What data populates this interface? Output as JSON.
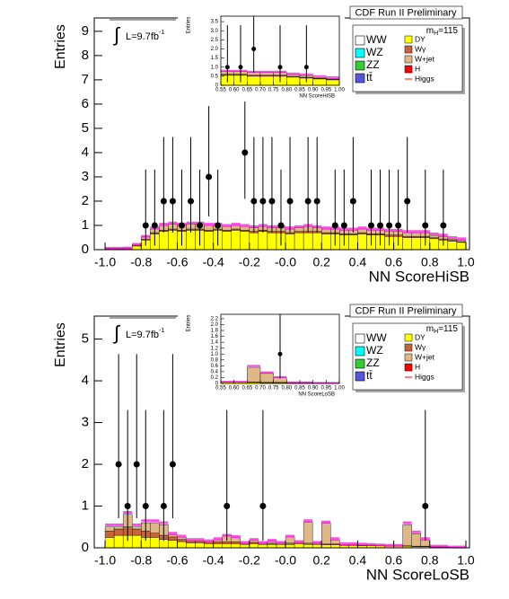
{
  "chart_data": [
    {
      "type": "histogram",
      "title": "CDF Run II Preliminary",
      "xlabel": "NN ScoreHiSB",
      "ylabel": "Entries",
      "mass_label": {
        "symbol": "m",
        "subscript": "H",
        "text": "=115"
      },
      "lumi_label": {
        "integral": "∫",
        "text": "L=9.7fb",
        "superscript": "-1"
      },
      "xlim": [
        -1.06,
        1.02
      ],
      "ylim": [
        0,
        9.55
      ],
      "xticks": [
        {
          "value": -1,
          "label": "-1.0"
        },
        -0.8,
        -0.6,
        -0.4,
        -0.2,
        {
          "value": 0,
          "label": "-0.0"
        },
        0.2,
        0.4,
        0.6,
        0.8,
        {
          "value": 1,
          "label": "1.0"
        }
      ],
      "yticks": [
        0,
        1,
        2,
        3,
        4,
        5,
        6,
        7,
        8,
        9
      ],
      "bins": [
        -1,
        -0.95,
        -0.9,
        -0.85,
        -0.8,
        -0.75,
        -0.7,
        -0.65,
        -0.6,
        -0.55,
        -0.5,
        -0.45,
        -0.4,
        -0.35,
        -0.3,
        -0.25,
        -0.2,
        -0.15,
        -0.1,
        -0.05,
        0,
        0.05,
        0.1,
        0.15,
        0.2,
        0.25,
        0.3,
        0.35,
        0.4,
        0.45,
        0.5,
        0.55,
        0.6,
        0.65,
        0.7,
        0.75,
        0.8,
        0.85,
        0.9,
        0.95,
        1
      ],
      "series": [
        {
          "name": "DY",
          "color": "#ffff00",
          "values": [
            0.03,
            0.03,
            0.03,
            0.15,
            0.4,
            0.65,
            0.75,
            0.8,
            0.75,
            0.8,
            0.8,
            0.75,
            0.8,
            0.75,
            0.8,
            0.75,
            0.7,
            0.75,
            0.7,
            0.7,
            0.65,
            0.7,
            0.7,
            0.7,
            0.65,
            0.65,
            0.6,
            0.6,
            0.65,
            0.6,
            0.6,
            0.55,
            0.55,
            0.5,
            0.5,
            0.5,
            0.45,
            0.4,
            0.35,
            0.3
          ]
        },
        {
          "name": "Wγ",
          "color": "#c8643c",
          "values": [
            0.01,
            0.01,
            0.01,
            0.02,
            0.03,
            0.05,
            0.05,
            0.05,
            0.05,
            0.05,
            0.05,
            0.05,
            0.05,
            0.05,
            0.05,
            0.05,
            0.05,
            0.05,
            0.05,
            0.05,
            0.05,
            0.05,
            0.05,
            0.05,
            0.05,
            0.05,
            0.05,
            0.05,
            0.05,
            0.05,
            0.05,
            0.05,
            0.05,
            0.05,
            0.05,
            0.05,
            0.04,
            0.04,
            0.03,
            0.03
          ]
        },
        {
          "name": "W+jet",
          "color": "#deb887",
          "values": [
            0.02,
            0.02,
            0.03,
            0.05,
            0.1,
            0.15,
            0.2,
            0.2,
            0.2,
            0.2,
            0.2,
            0.2,
            0.15,
            0.15,
            0.15,
            0.15,
            0.15,
            0.15,
            0.15,
            0.15,
            0.15,
            0.15,
            0.2,
            0.15,
            0.15,
            0.15,
            0.15,
            0.15,
            0.15,
            0.15,
            0.15,
            0.15,
            0.15,
            0.15,
            0.15,
            0.15,
            0.1,
            0.1,
            0.05,
            0.05
          ]
        }
      ],
      "higgs": {
        "name": "Higgs",
        "color": "#ff22dd",
        "values": [
          0.06,
          0.06,
          0.07,
          0.22,
          0.55,
          0.9,
          1.05,
          1.1,
          1.05,
          1.1,
          1.1,
          1.05,
          1.05,
          1.0,
          1.05,
          1.0,
          0.95,
          1.0,
          0.95,
          0.95,
          0.9,
          0.95,
          1.0,
          0.95,
          0.9,
          0.9,
          0.85,
          0.85,
          0.9,
          0.85,
          0.85,
          0.8,
          0.8,
          0.75,
          0.75,
          0.75,
          0.65,
          0.6,
          0.5,
          0.45
        ]
      },
      "legend_only": [
        {
          "name": "WW",
          "color": "#ffffff"
        },
        {
          "name": "WZ",
          "color": "#00ffff"
        },
        {
          "name": "ZZ",
          "color": "#33cc33"
        },
        {
          "name": "tt̄",
          "color": "#5555dd"
        },
        {
          "name": "H",
          "color": "#ff0000"
        }
      ],
      "legend_position": "upper right",
      "data_points": {
        "x": [
          -0.775,
          -0.725,
          -0.675,
          -0.625,
          -0.575,
          -0.525,
          -0.475,
          -0.425,
          -0.375,
          -0.225,
          -0.175,
          -0.125,
          -0.075,
          -0.025,
          0.025,
          0.125,
          0.175,
          0.275,
          0.325,
          0.375,
          0.475,
          0.525,
          0.575,
          0.625,
          0.675,
          0.775,
          0.875
        ],
        "values": [
          1,
          1,
          2,
          2,
          1,
          2,
          1,
          3,
          1,
          4,
          2,
          2,
          2,
          1,
          2,
          2,
          2,
          1,
          1,
          2,
          1,
          1,
          1,
          1,
          2,
          1,
          1
        ],
        "err_low": [
          0.83,
          0.83,
          1.29,
          1.29,
          0.83,
          1.29,
          0.83,
          1.63,
          0.83,
          1.91,
          1.29,
          1.29,
          1.29,
          0.83,
          1.29,
          1.29,
          1.29,
          0.83,
          0.83,
          1.29,
          0.83,
          0.83,
          0.83,
          0.83,
          1.29,
          0.83,
          0.83
        ],
        "err_high": [
          2.3,
          2.3,
          2.64,
          2.64,
          2.3,
          2.64,
          2.3,
          2.92,
          2.3,
          3.16,
          2.64,
          2.64,
          2.64,
          2.3,
          2.64,
          2.64,
          2.64,
          2.3,
          2.3,
          2.64,
          2.3,
          2.3,
          2.3,
          2.3,
          2.64,
          2.3,
          2.3
        ]
      },
      "inset": {
        "xlabel": "NN ScoreHiSB",
        "ylabel": "Entries",
        "xlim": [
          0.55,
          1.0
        ],
        "ylim": [
          0,
          3.8
        ],
        "xticks": [
          0.55,
          {
            "value": 0.6,
            "label": "0.60"
          },
          0.65,
          {
            "value": 0.7,
            "label": "0.70"
          },
          0.75,
          {
            "value": 0.8,
            "label": "0.80"
          },
          0.85,
          {
            "value": 0.9,
            "label": "0.90"
          },
          0.95,
          {
            "value": 1,
            "label": "1.00"
          }
        ],
        "yticks": [
          0,
          0.5,
          {
            "value": 1,
            "label": "1.0"
          },
          1.5,
          {
            "value": 2,
            "label": "2.0"
          },
          2.5,
          {
            "value": 3,
            "label": "3.0"
          },
          3.5
        ]
      }
    },
    {
      "type": "histogram",
      "title": "CDF Run II Preliminary",
      "xlabel": "NN ScoreLoSB",
      "ylabel": "Entries",
      "mass_label": {
        "symbol": "m",
        "subscript": "H",
        "text": "=115"
      },
      "lumi_label": {
        "integral": "∫",
        "text": "L=9.7fb",
        "superscript": "-1"
      },
      "xlim": [
        -1.06,
        1.02
      ],
      "ylim": [
        0,
        5.55
      ],
      "xticks": [
        {
          "value": -1,
          "label": "-1.0"
        },
        -0.8,
        -0.6,
        -0.4,
        -0.2,
        {
          "value": 0,
          "label": "-0.0"
        },
        0.2,
        0.4,
        0.6,
        0.8,
        {
          "value": 1,
          "label": "1.0"
        }
      ],
      "yticks": [
        0,
        1,
        2,
        3,
        4,
        5
      ],
      "bins": [
        -1,
        -0.95,
        -0.9,
        -0.85,
        -0.8,
        -0.75,
        -0.7,
        -0.65,
        -0.6,
        -0.55,
        -0.5,
        -0.45,
        -0.4,
        -0.35,
        -0.3,
        -0.25,
        -0.2,
        -0.15,
        -0.1,
        -0.05,
        0,
        0.05,
        0.1,
        0.15,
        0.2,
        0.25,
        0.3,
        0.35,
        0.4,
        0.45,
        0.5,
        0.55,
        0.6,
        0.65,
        0.7,
        0.75,
        0.8,
        0.85,
        0.9,
        0.95,
        1
      ],
      "series": [
        {
          "name": "DY",
          "color": "#ffff00",
          "values": [
            0.25,
            0.3,
            0.3,
            0.3,
            0.25,
            0.25,
            0.2,
            0.18,
            0.15,
            0.12,
            0.12,
            0.1,
            0.1,
            0.1,
            0.1,
            0.08,
            0.1,
            0.08,
            0.08,
            0.08,
            0.08,
            0.1,
            0.08,
            0.08,
            0.07,
            0.07,
            0.06,
            0.06,
            0.05,
            0.05,
            0.05,
            0.04,
            0.04,
            0.04,
            0.03,
            0.03,
            0.02,
            0.02,
            0.01,
            0.01
          ]
        },
        {
          "name": "Wγ",
          "color": "#c8643c",
          "values": [
            0.15,
            0.15,
            0.2,
            0.15,
            0.15,
            0.1,
            0.1,
            0.08,
            0.05,
            0.05,
            0.05,
            0.04,
            0.04,
            0.04,
            0.04,
            0.03,
            0.03,
            0.03,
            0.03,
            0.03,
            0.03,
            0.03,
            0.03,
            0.03,
            0.02,
            0.02,
            0.02,
            0.02,
            0.02,
            0.02,
            0.01,
            0.01,
            0.01,
            0.01,
            0.01,
            0.01,
            0.01,
            0.01,
            0,
            0
          ]
        },
        {
          "name": "W+jet",
          "color": "#deb887",
          "values": [
            0.1,
            0.05,
            0.3,
            0.05,
            0.2,
            0.25,
            0.25,
            0.05,
            0.05,
            0,
            0,
            0,
            0.05,
            0.15,
            0.1,
            0,
            0.05,
            0,
            0.05,
            0,
            0.15,
            0,
            0.5,
            0,
            0.5,
            0.1,
            0,
            0,
            0,
            0,
            0,
            0,
            0,
            0.5,
            0.3,
            0.15,
            0,
            0,
            0,
            0
          ]
        }
      ],
      "higgs": {
        "name": "Higgs",
        "color": "#ff22dd",
        "values": [
          0.55,
          0.55,
          0.85,
          0.55,
          0.65,
          0.65,
          0.6,
          0.35,
          0.28,
          0.2,
          0.2,
          0.17,
          0.22,
          0.3,
          0.27,
          0.13,
          0.2,
          0.13,
          0.18,
          0.13,
          0.28,
          0.15,
          0.65,
          0.13,
          0.62,
          0.22,
          0.1,
          0.1,
          0.09,
          0.08,
          0.07,
          0.06,
          0.06,
          0.6,
          0.38,
          0.22,
          0.04,
          0.04,
          0.02,
          0.02
        ]
      },
      "legend_only": [
        {
          "name": "WW",
          "color": "#ffffff"
        },
        {
          "name": "WZ",
          "color": "#00ffff"
        },
        {
          "name": "ZZ",
          "color": "#33cc33"
        },
        {
          "name": "tt̄",
          "color": "#5555dd"
        },
        {
          "name": "H",
          "color": "#ff0000"
        }
      ],
      "legend_position": "upper right",
      "data_points": {
        "x": [
          -0.925,
          -0.875,
          -0.825,
          -0.775,
          -0.675,
          -0.625,
          -0.325,
          -0.125,
          0.775
        ],
        "values": [
          2,
          1,
          2,
          1,
          1,
          2,
          1,
          1,
          1
        ],
        "err_low": [
          1.29,
          0.83,
          1.29,
          0.83,
          0.83,
          1.29,
          0.83,
          0.83,
          0.83
        ],
        "err_high": [
          2.64,
          2.3,
          2.64,
          2.3,
          2.3,
          2.64,
          2.3,
          2.3,
          2.3
        ]
      },
      "inset": {
        "xlabel": "NN ScoreLoSB",
        "ylabel": "Entries",
        "xlim": [
          0.55,
          1.0
        ],
        "ylim": [
          0,
          2.35
        ],
        "xticks": [
          0.55,
          {
            "value": 0.6,
            "label": "0.60"
          },
          0.65,
          {
            "value": 0.7,
            "label": "0.70"
          },
          0.75,
          {
            "value": 0.8,
            "label": "0.80"
          },
          0.85,
          {
            "value": 0.9,
            "label": "0.90"
          },
          0.95,
          {
            "value": 1,
            "label": "1.00"
          }
        ],
        "yticks": [
          0,
          0.2,
          0.4,
          0.6,
          0.8,
          {
            "value": 1,
            "label": "1.0"
          },
          1.2,
          1.4,
          1.6,
          1.8,
          {
            "value": 2,
            "label": "2.0"
          },
          2.2
        ]
      }
    }
  ]
}
